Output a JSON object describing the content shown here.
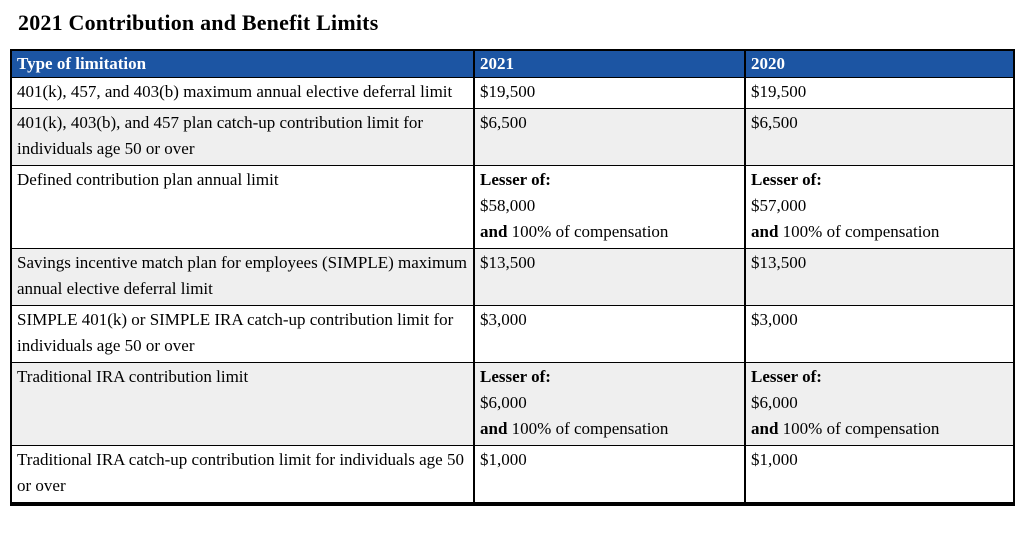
{
  "title": "2021 Contribution and Benefit Limits",
  "colors": {
    "header_bg": "#1C55A3",
    "header_text": "#FFFFFF",
    "shaded_row_bg": "#EFEFEF",
    "border": "#000000"
  },
  "table": {
    "headers": [
      "Type of limitation",
      "2021",
      "2020"
    ],
    "rows": [
      {
        "shaded": false,
        "limitation": "401(k), 457, and 403(b) maximum annual elective deferral limit",
        "values": [
          "$19,500",
          "$19,500"
        ]
      },
      {
        "shaded": true,
        "limitation": "401(k), 403(b), and 457 plan catch-up contribution limit for individuals age 50 or over",
        "values": [
          "$6,500",
          "$6,500"
        ]
      },
      {
        "shaded": false,
        "limitation": "Defined contribution plan annual limit",
        "values": [
          [
            [
              {
                "text": "Lesser of:",
                "bold": true
              }
            ],
            [
              {
                "text": "$58,000",
                "bold": false
              }
            ],
            [
              {
                "text": "and",
                "bold": true
              },
              {
                "text": " 100% of compensation",
                "bold": false
              }
            ]
          ],
          [
            [
              {
                "text": "Lesser of:",
                "bold": true
              }
            ],
            [
              {
                "text": "$57,000",
                "bold": false
              }
            ],
            [
              {
                "text": "and",
                "bold": true
              },
              {
                "text": " 100% of compensation",
                "bold": false
              }
            ]
          ]
        ]
      },
      {
        "shaded": true,
        "limitation": "Savings incentive match plan for employees (SIMPLE) maximum annual elective deferral limit",
        "values": [
          "$13,500",
          "$13,500"
        ]
      },
      {
        "shaded": false,
        "limitation": "SIMPLE 401(k) or SIMPLE IRA catch-up contribution limit for individuals age 50 or over",
        "values": [
          "$3,000",
          "$3,000"
        ]
      },
      {
        "shaded": true,
        "limitation": "Traditional IRA contribution limit",
        "values": [
          [
            [
              {
                "text": "Lesser of:",
                "bold": true
              }
            ],
            [
              {
                "text": "$6,000",
                "bold": false
              }
            ],
            [
              {
                "text": "and",
                "bold": true
              },
              {
                "text": " 100% of compensation",
                "bold": false
              }
            ]
          ],
          [
            [
              {
                "text": "Lesser of:",
                "bold": true
              }
            ],
            [
              {
                "text": "$6,000",
                "bold": false
              }
            ],
            [
              {
                "text": "and",
                "bold": true
              },
              {
                "text": " 100% of compensation",
                "bold": false
              }
            ]
          ]
        ]
      },
      {
        "shaded": false,
        "limitation": "Traditional IRA catch-up contribution limit for individuals age 50 or over",
        "values": [
          "$1,000",
          "$1,000"
        ]
      }
    ]
  }
}
